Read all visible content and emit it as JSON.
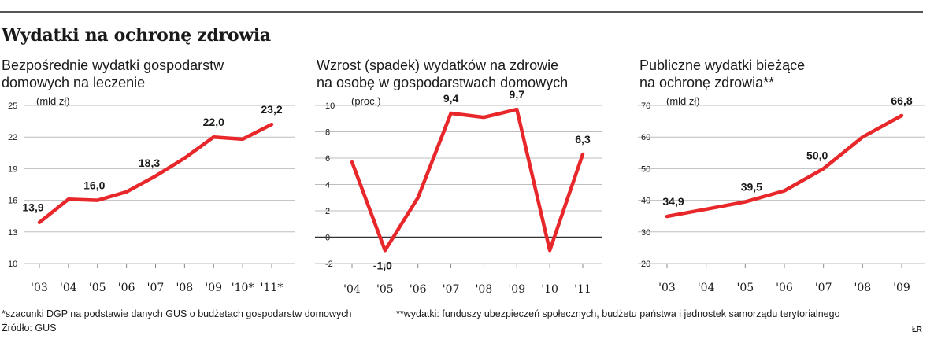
{
  "title": "Wydatki na ochronę zdrowia",
  "panels": [
    {
      "subtitle": "Bezpośrednie wydatki gospodarstw\ndomowych na leczenie",
      "unit": "(mld zł)"
    },
    {
      "subtitle": "Wzrost (spadek) wydatków na zdrowie\nna osobę w gospodarstwach domowych",
      "unit": "(proc.)"
    },
    {
      "subtitle": "Publiczne wydatki bieżące\nna ochronę zdrowia**",
      "unit": "(mld zł)"
    }
  ],
  "footnote1": "*szacunki DGP na podstawie danych GUS o budżetach gospodarstw domowych",
  "footnote2": "**wydatki: funduszy ubezpieczeń społecznych, budżetu państwa i jednostek samorządu terytorialnego",
  "source": "Źródło: GUS",
  "logo": "ŁR",
  "colors": {
    "line": "#e8272a",
    "grid": "#bdbdbd",
    "text": "#1a1a1a",
    "zero_line": "#333333"
  },
  "chart_data": [
    {
      "type": "line",
      "title": "Bezpośrednie wydatki gospodarstw domowych na leczenie",
      "ylabel": "(mld zł)",
      "categories": [
        "'03",
        "'04",
        "'05",
        "'06",
        "'07",
        "'08",
        "'09",
        "'10*",
        "'11*"
      ],
      "values": [
        13.9,
        16.1,
        16.0,
        16.8,
        18.3,
        20.0,
        22.0,
        21.8,
        23.2
      ],
      "data_labels": [
        {
          "index": 0,
          "text": "13,9"
        },
        {
          "index": 2,
          "text": "16,0"
        },
        {
          "index": 4,
          "text": "18,3"
        },
        {
          "index": 6,
          "text": "22,0"
        },
        {
          "index": 8,
          "text": "23,2"
        }
      ],
      "yticks": [
        10,
        13,
        16,
        19,
        22,
        25
      ],
      "ylim": [
        10,
        25
      ],
      "grid": true
    },
    {
      "type": "line",
      "title": "Wzrost (spadek) wydatków na zdrowie na osobę w gospodarstwach domowych",
      "ylabel": "(proc.)",
      "categories": [
        "'04",
        "'05",
        "'06",
        "'07",
        "'08",
        "'09",
        "'10",
        "'11"
      ],
      "values": [
        5.7,
        -1.0,
        3.0,
        9.4,
        9.1,
        9.7,
        -1.0,
        6.3
      ],
      "data_labels": [
        {
          "index": 1,
          "text": "-1,0"
        },
        {
          "index": 3,
          "text": "9,4"
        },
        {
          "index": 5,
          "text": "9,7"
        },
        {
          "index": 7,
          "text": "6,3"
        }
      ],
      "yticks": [
        -2,
        0,
        2,
        4,
        6,
        8,
        10
      ],
      "ylim": [
        -2,
        10
      ],
      "grid": true
    },
    {
      "type": "line",
      "title": "Publiczne wydatki bieżące na ochronę zdrowia**",
      "ylabel": "(mld zł)",
      "categories": [
        "'03",
        "'04",
        "'05",
        "'06",
        "'07",
        "'08",
        "'09"
      ],
      "values": [
        34.9,
        37.2,
        39.5,
        43.0,
        50.0,
        60.0,
        66.8
      ],
      "data_labels": [
        {
          "index": 0,
          "text": "34,9"
        },
        {
          "index": 2,
          "text": "39,5"
        },
        {
          "index": 4,
          "text": "50,0"
        },
        {
          "index": 6,
          "text": "66,8"
        }
      ],
      "yticks": [
        20,
        30,
        40,
        50,
        60,
        70
      ],
      "ylim": [
        20,
        70
      ],
      "grid": true
    }
  ]
}
